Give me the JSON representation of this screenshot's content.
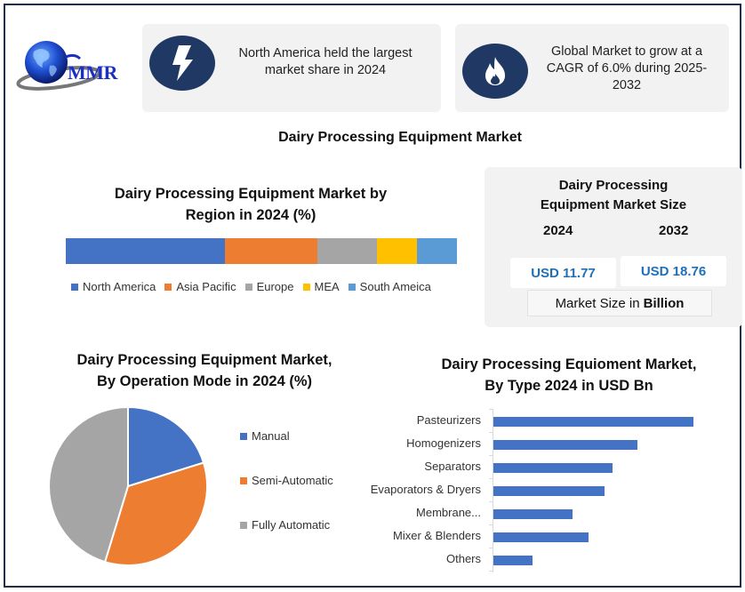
{
  "logo": {
    "text": "MMR",
    "icon": "globe-icon"
  },
  "cards": [
    {
      "icon": "lightning-bolt-icon",
      "text": "North America held the largest market share in 2024"
    },
    {
      "icon": "flame-icon",
      "text": "Global Market to grow at a CAGR of 6.0% during 2025-2032"
    }
  ],
  "main_title": "Dairy Processing Equipment Market",
  "market_size": {
    "title_line1": "Dairy Processing",
    "title_line2": "Equipment Market Size",
    "year_a": "2024",
    "year_b": "2032",
    "value_a": "USD 11.77",
    "value_b": "USD 18.76",
    "unit_prefix": "Market Size in",
    "unit_bold": "Billion"
  },
  "colors": {
    "blue": "#4472c4",
    "orange": "#ed7d31",
    "gray": "#a5a5a5",
    "yellow": "#ffc000",
    "light_blue": "#5b9bd5",
    "navy": "#1f3864",
    "value_text": "#1f6fb8"
  },
  "chart_data": [
    {
      "type": "bar",
      "orientation": "horizontal-stacked-100",
      "title": "Dairy Processing Equipment Market by Region in 2024 (%)",
      "title_line1": "Dairy Processing Equipment Market by",
      "title_line2": "Region in 2024 (%)",
      "categories": [
        "North America",
        "Asia Pacific",
        "Europe",
        "MEA",
        "South Ameica"
      ],
      "values": [
        40.7,
        23.6,
        15.2,
        10.2,
        10.2
      ],
      "colors": [
        "#4472c4",
        "#ed7d31",
        "#a5a5a5",
        "#ffc000",
        "#5b9bd5"
      ],
      "legend_position": "bottom",
      "grid": false
    },
    {
      "type": "pie",
      "title": "Dairy Processing Equipment Market, By Operation Mode in 2024 (%)",
      "title_line1": "Dairy Processing Equipment Market,",
      "title_line2": "By Operation Mode in 2024 (%)",
      "categories": [
        "Manual",
        "Semi-Automatic",
        "Fully Automatic"
      ],
      "values": [
        20.2,
        34.5,
        45.3
      ],
      "colors": [
        "#4472c4",
        "#ed7d31",
        "#a5a5a5"
      ],
      "legend_position": "right"
    },
    {
      "type": "bar",
      "orientation": "horizontal",
      "title": "Dairy Processing Equioment Market, By Type 2024 in USD Bn",
      "title_line1": "Dairy Processing Equioment Market,",
      "title_line2": "By Type 2024 in USD Bn",
      "categories": [
        "Pasteurizers",
        "Homogenizers",
        "Separators",
        "Evaporators & Dryers",
        "Membrane...",
        "Mixer & Blenders",
        "Others"
      ],
      "values": [
        2.99,
        2.15,
        1.78,
        1.66,
        1.18,
        1.42,
        0.58
      ],
      "color": "#4472c4",
      "xlabel": "",
      "ylabel": "",
      "grid": false
    }
  ]
}
